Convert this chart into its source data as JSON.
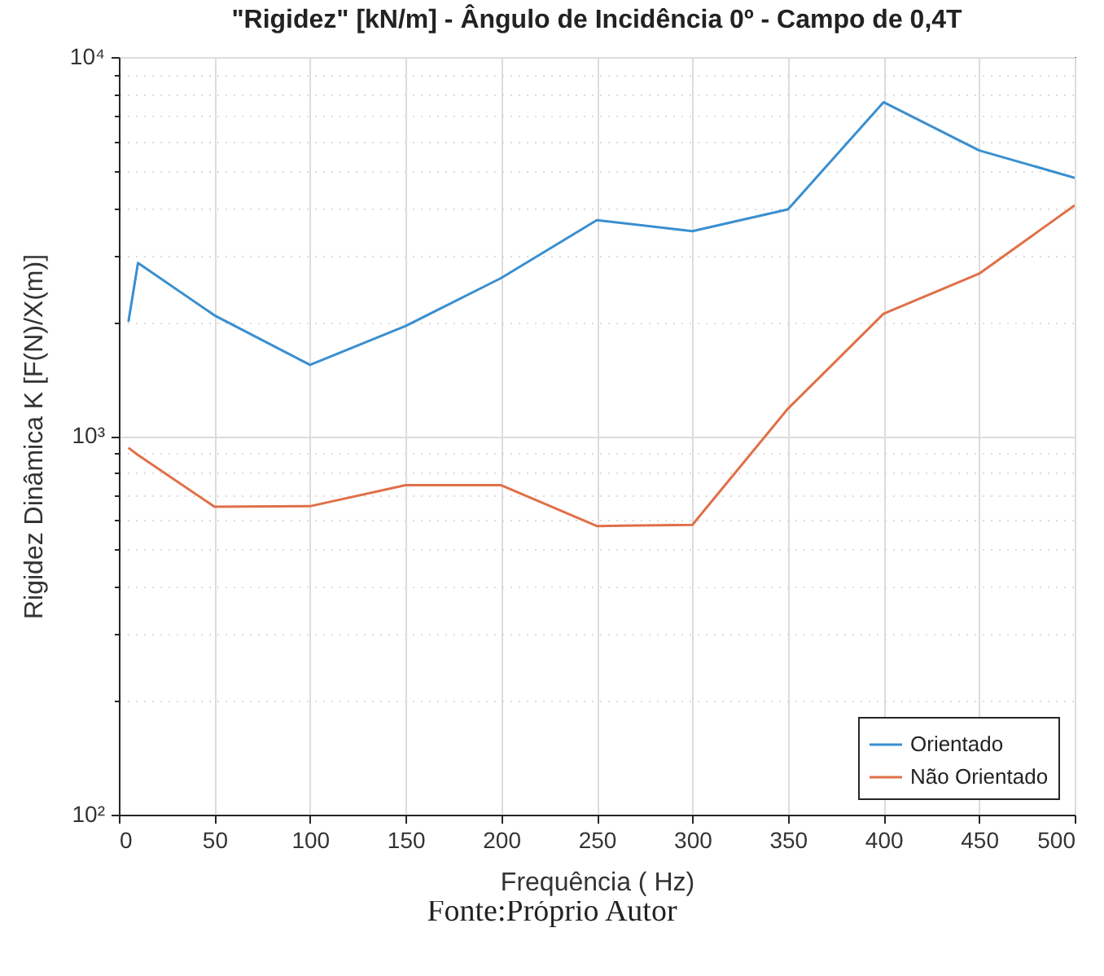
{
  "chart_data": {
    "type": "line",
    "title": "\"Rigidez\" [kN/m] - Ângulo de Incidência 0º - Campo de 0,4T",
    "xlabel": "Frequência ( Hz)",
    "ylabel": "Rigidez Dinâmica K [F(N)/X(m)]",
    "annotations": [
      "Fonte:Próprio Autor"
    ],
    "x": [
      5,
      10,
      50,
      100,
      150,
      200,
      250,
      300,
      350,
      400,
      450,
      500
    ],
    "series": [
      {
        "name": "Orientado",
        "color": "#3a8fd0",
        "values": [
          2000,
          2860,
          2080,
          1540,
          1950,
          2610,
          3710,
          3470,
          3960,
          7600,
          5670,
          4800
        ]
      },
      {
        "name": "Não Orientado",
        "color": "#e07048",
        "values": [
          930,
          890,
          650,
          652,
          741,
          741,
          578,
          582,
          1180,
          2100,
          2680,
          4060
        ]
      }
    ],
    "xlim": [
      0,
      500
    ],
    "xticks": [
      0,
      50,
      100,
      150,
      200,
      250,
      300,
      350,
      400,
      450,
      500
    ],
    "ylim": [
      100,
      10000
    ],
    "log": "y",
    "yticks": [
      {
        "value": 100,
        "label": "10²"
      },
      {
        "value": 200,
        "label": null
      },
      {
        "value": 300,
        "label": null
      },
      {
        "value": 400,
        "label": null
      },
      {
        "value": 500,
        "label": null
      },
      {
        "value": 600,
        "label": null
      },
      {
        "value": 700,
        "label": null
      },
      {
        "value": 800,
        "label": null
      },
      {
        "value": 900,
        "label": null
      },
      {
        "value": 1000,
        "label": "10³"
      },
      {
        "value": 2000,
        "label": null
      },
      {
        "value": 3000,
        "label": null
      },
      {
        "value": 4000,
        "label": null
      },
      {
        "value": 5000,
        "label": null
      },
      {
        "value": 6000,
        "label": null
      },
      {
        "value": 7000,
        "label": null
      },
      {
        "value": 8000,
        "label": null
      },
      {
        "value": 9000,
        "label": null
      },
      {
        "value": 10000,
        "label": "10⁴"
      }
    ],
    "grid": true,
    "legend": "bottom right",
    "line_style": "solid",
    "marker": "none"
  }
}
